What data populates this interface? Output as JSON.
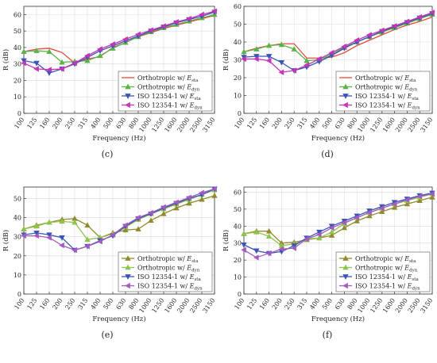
{
  "panels": [
    {
      "label": "(c)",
      "chart_data": {
        "type": "line",
        "xlabel": "Frequency (Hz)",
        "ylabel": "R (dB)",
        "ylim": [
          0,
          65
        ],
        "yticks": [
          0,
          10,
          20,
          30,
          40,
          50,
          60
        ],
        "x": [
          "100",
          "125",
          "160",
          "200",
          "250",
          "315",
          "400",
          "500",
          "630",
          "800",
          "1000",
          "1250",
          "1600",
          "2000",
          "2500",
          "3150"
        ],
        "grid": true,
        "legend": "bottom-right",
        "series": [
          {
            "name": "Orthotropic w/ E_sta",
            "legend_main": "Orthotropic w/ ",
            "legend_sub": "sta",
            "color": "#e8493c",
            "marker": "none",
            "values": [
              37.5,
              39,
              39.5,
              37,
              30.5,
              33,
              34.5,
              40,
              43,
              46.5,
              49,
              51.5,
              53.5,
              55.5,
              57.5,
              59.5
            ]
          },
          {
            "name": "Orthotropic w/ E_dyn",
            "legend_main": "Orthotropic w/ ",
            "legend_sub": "dyn",
            "color": "#59b347",
            "marker": "tri-up",
            "values": [
              37.5,
              38,
              37.5,
              31,
              31.5,
              32,
              35,
              39.5,
              43,
              46.5,
              49.5,
              52,
              54,
              56,
              58,
              60
            ]
          },
          {
            "name": "ISO 12354-1 w/ E_sta",
            "legend_main": "ISO 12354-1 w/ ",
            "legend_sub": "sta",
            "color": "#3b55b5",
            "marker": "tri-down",
            "values": [
              32,
              30.5,
              24.5,
              27,
              30,
              34,
              38,
              41,
              44,
              47,
              50,
              52.5,
              55,
              57,
              59,
              61.5
            ]
          },
          {
            "name": "ISO 12354-1 w/ E_dyn",
            "legend_main": "ISO 12354-1 w/ ",
            "legend_sub": "dyn",
            "color": "#c236b8",
            "marker": "tri-left",
            "values": [
              30.5,
              27,
              26.5,
              27,
              30.5,
              35,
              39,
              42,
              45,
              48,
              50.5,
              53,
              55.5,
              57.5,
              60,
              62
            ]
          }
        ]
      }
    },
    {
      "label": "(d)",
      "chart_data": {
        "type": "line",
        "xlabel": "Frequency (Hz)",
        "ylabel": "R (dB)",
        "ylim": [
          0,
          60
        ],
        "yticks": [
          0,
          10,
          20,
          30,
          40,
          50,
          60
        ],
        "x": [
          "100",
          "125",
          "160",
          "200",
          "250",
          "315",
          "400",
          "500",
          "630",
          "800",
          "1000",
          "1250",
          "1600",
          "2000",
          "2500",
          "3150"
        ],
        "grid": true,
        "legend": "bottom-right",
        "series": [
          {
            "name": "Orthotropic w/ E_sta",
            "legend_main": "Orthotropic w/ ",
            "legend_sub": "sta",
            "color": "#e8493c",
            "marker": "none",
            "values": [
              34.5,
              36.5,
              38,
              39,
              39,
              31,
              31,
              31.5,
              34,
              38,
              41,
              44,
              47,
              49.5,
              51.5,
              54
            ]
          },
          {
            "name": "Orthotropic w/ E_dyn",
            "legend_main": "Orthotropic w/ ",
            "legend_sub": "dyn",
            "color": "#59b347",
            "marker": "tri-up",
            "values": [
              34.5,
              36,
              38,
              38.5,
              36,
              29.5,
              30,
              33,
              37,
              40,
              43,
              45.5,
              48,
              50.5,
              53,
              55.5
            ]
          },
          {
            "name": "ISO 12354-1 w/ E_sta",
            "legend_main": "ISO 12354-1 w/ ",
            "legend_sub": "sta",
            "color": "#3b55b5",
            "marker": "tri-down",
            "values": [
              31.5,
              32,
              32,
              28.5,
              24,
              26,
              29,
              32.5,
              36.5,
              40,
              43,
              46,
              48.5,
              51,
              53.5,
              56
            ]
          },
          {
            "name": "ISO 12354-1 w/ E_dyn",
            "legend_main": "ISO 12354-1 w/ ",
            "legend_sub": "dyn",
            "color": "#c236b8",
            "marker": "tri-left",
            "values": [
              30.5,
              30.5,
              29.5,
              23,
              24,
              27,
              30.5,
              34,
              37.5,
              41,
              44,
              46.5,
              49,
              51.5,
              54,
              56.5
            ]
          }
        ]
      }
    },
    {
      "label": "(e)",
      "chart_data": {
        "type": "line",
        "xlabel": "Frequency (Hz)",
        "ylabel": "R (dB)",
        "ylim": [
          0,
          56
        ],
        "yticks": [
          0,
          10,
          20,
          30,
          40,
          50
        ],
        "x": [
          "100",
          "125",
          "160",
          "200",
          "250",
          "315",
          "400",
          "500",
          "630",
          "800",
          "1000",
          "1250",
          "1600",
          "2000",
          "2500",
          "3150"
        ],
        "grid": true,
        "legend": "bottom-right",
        "series": [
          {
            "name": "Orthotropic w/ E_sta",
            "legend_main": "Orthotropic w/ ",
            "legend_sub": "sta",
            "color": "#8f8a2e",
            "marker": "tri-up",
            "values": [
              34,
              36,
              37.5,
              39,
              39.5,
              36,
              29.5,
              32,
              33.5,
              34,
              38.5,
              42,
              45,
              47.5,
              49.5,
              51.5
            ]
          },
          {
            "name": "Orthotropic w/ E_dyn",
            "legend_main": "Orthotropic w/ ",
            "legend_sub": "dyn",
            "color": "#8ec44a",
            "marker": "tri-up",
            "values": [
              34,
              35.5,
              37.5,
              38,
              37.5,
              28.5,
              29.5,
              31.5,
              35,
              39,
              42,
              44.5,
              47,
              49.5,
              52,
              54.5
            ]
          },
          {
            "name": "ISO 12354-1 w/ E_sta",
            "legend_main": "ISO 12354-1 w/ ",
            "legend_sub": "sta",
            "color": "#3b55b5",
            "marker": "tri-down",
            "values": [
              31,
              32,
              31,
              29.5,
              23,
              25,
              28,
              30.5,
              35.5,
              39.5,
              42,
              45,
              47.5,
              50,
              52,
              55
            ]
          },
          {
            "name": "ISO 12354-1 w/ E_dyn",
            "legend_main": "ISO 12354-1 w/ ",
            "legend_sub": "dyn",
            "color": "#a35bc2",
            "marker": "tri-left",
            "values": [
              30.5,
              30.5,
              29.5,
              25.5,
              23,
              25,
              27.5,
              31,
              36,
              40,
              42.5,
              45.5,
              48,
              50.5,
              53,
              55
            ]
          }
        ]
      }
    },
    {
      "label": "(f)",
      "chart_data": {
        "type": "line",
        "xlabel": "Frequency (Hz)",
        "ylabel": "R (dB)",
        "ylim": [
          0,
          63
        ],
        "yticks": [
          0,
          10,
          20,
          30,
          40,
          50,
          60
        ],
        "x": [
          "100",
          "125",
          "160",
          "200",
          "250",
          "315",
          "400",
          "500",
          "630",
          "800",
          "1000",
          "1250",
          "1600",
          "2000",
          "2500",
          "3150"
        ],
        "grid": true,
        "legend": "bottom-right",
        "series": [
          {
            "name": "Orthotropic w/ E_sta",
            "legend_main": "Orthotropic w/ ",
            "legend_sub": "sta",
            "color": "#8f8a2e",
            "marker": "tri-up",
            "values": [
              35.5,
              37,
              37,
              30,
              30.5,
              32,
              33,
              34.5,
              39,
              43,
              46,
              48.5,
              51,
              53,
              55,
              57
            ]
          },
          {
            "name": "Orthotropic w/ E_dyn",
            "legend_main": "Orthotropic w/ ",
            "legend_sub": "dyn",
            "color": "#8ec44a",
            "marker": "tri-up",
            "values": [
              35.5,
              36.5,
              34,
              28.5,
              29.5,
              32.5,
              33,
              36.5,
              41.5,
              45,
              48,
              50.5,
              53,
              55,
              57,
              59
            ]
          },
          {
            "name": "ISO 12354-1 w/ E_sta",
            "legend_main": "ISO 12354-1 w/ ",
            "legend_sub": "sta",
            "color": "#3b55b5",
            "marker": "tri-down",
            "values": [
              29,
              25.5,
              24,
              25,
              28.5,
              33,
              36.5,
              40,
              43,
              46,
              49,
              51.5,
              54,
              56,
              58,
              59.5
            ]
          },
          {
            "name": "ISO 12354-1 w/ E_dyn",
            "legend_main": "ISO 12354-1 w/ ",
            "legend_sub": "dyn",
            "color": "#a35bc2",
            "marker": "tri-left",
            "values": [
              26,
              21.5,
              24,
              26.5,
              27,
              32.5,
              35,
              39,
              42,
              45,
              48,
              50.5,
              53,
              55.5,
              57.5,
              59
            ]
          }
        ]
      }
    }
  ]
}
